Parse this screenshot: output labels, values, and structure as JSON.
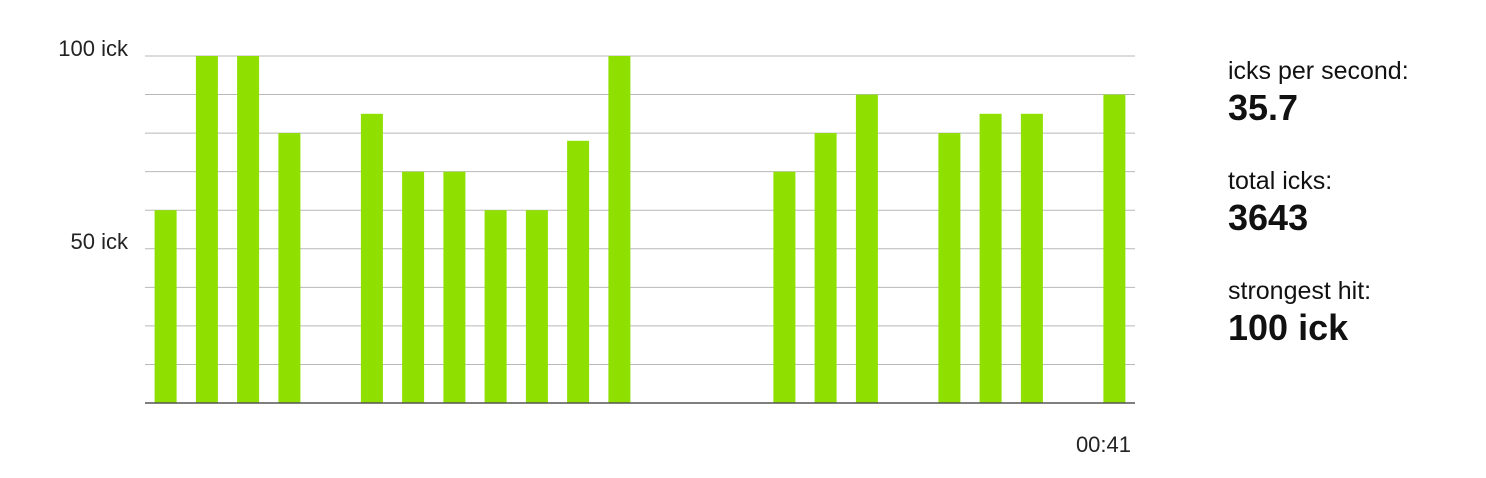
{
  "chart_data": {
    "type": "bar",
    "values": [
      60,
      100,
      100,
      80,
      null,
      85,
      70,
      70,
      60,
      60,
      78,
      100,
      null,
      null,
      null,
      70,
      80,
      90,
      null,
      80,
      85,
      85,
      null,
      90
    ],
    "ylim": [
      10,
      100
    ],
    "y_ticks": [
      {
        "value": 100,
        "label": "100 ick"
      },
      {
        "value": 50,
        "label": "50 ick"
      }
    ],
    "x_end_label": "00:41",
    "grid": true,
    "colors": {
      "bar": "#8fe000",
      "grid": "#b8b8b8",
      "axis": "#555555"
    }
  },
  "stats": {
    "rate_label": "icks per second:",
    "rate_value": "35.7",
    "total_label": "total icks:",
    "total_value": "3643",
    "max_label": "strongest hit:",
    "max_value": "100 ick"
  }
}
